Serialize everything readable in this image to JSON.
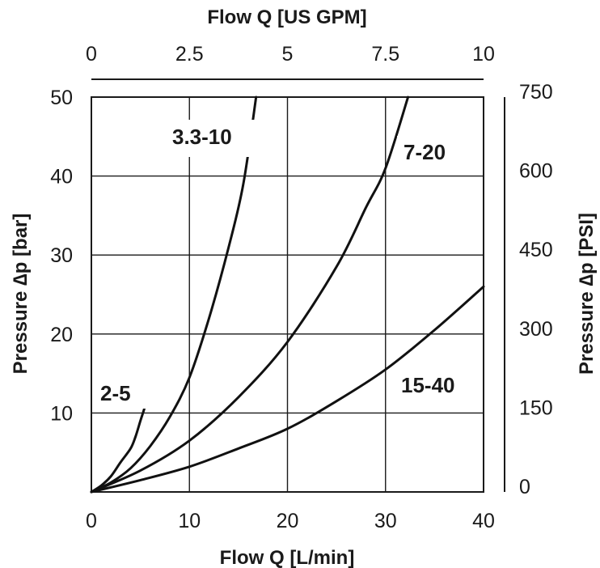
{
  "chart_data": {
    "type": "line",
    "xlabel": "Flow Q [L/min]",
    "ylabel": "Pressure ∆p [bar]",
    "x2label": "Flow Q [US GPM]",
    "y2label": "Pressure ∆p [PSI]",
    "xlim": [
      0,
      40
    ],
    "ylim": [
      0,
      50
    ],
    "x_ticks": [
      "0",
      "10",
      "20",
      "30",
      "40"
    ],
    "y_ticks": [
      "",
      "10",
      "20",
      "30",
      "40",
      "50"
    ],
    "x2_ticks": [
      "0",
      "2.5",
      "5",
      "7.5",
      "10"
    ],
    "y2_ticks": [
      "0",
      "150",
      "300",
      "450",
      "600",
      "750"
    ],
    "grid": true,
    "series": [
      {
        "name": "2-5",
        "x": [
          0,
          1,
          2,
          3,
          4,
          4.5,
          5,
          5.5,
          5.8
        ],
        "y": [
          0,
          0.8,
          2,
          3.8,
          5.5,
          7,
          9,
          11,
          13
        ]
      },
      {
        "name": "3.3-10",
        "x": [
          0,
          2,
          4,
          6,
          8,
          10,
          12,
          14,
          15.5,
          16.8
        ],
        "y": [
          0,
          1.2,
          3,
          5.8,
          9.5,
          14.5,
          22,
          31,
          39,
          50
        ]
      },
      {
        "name": "7-20",
        "x": [
          0,
          5,
          10,
          15,
          20,
          25,
          28,
          30,
          32.3
        ],
        "y": [
          0,
          2.7,
          6.5,
          12,
          19,
          28.5,
          36,
          41,
          50
        ]
      },
      {
        "name": "15-40",
        "x": [
          0,
          5,
          10,
          15,
          20,
          25,
          30,
          35,
          40
        ],
        "y": [
          0,
          1.5,
          3.2,
          5.5,
          8,
          11.5,
          15.5,
          20.5,
          26
        ]
      }
    ]
  }
}
